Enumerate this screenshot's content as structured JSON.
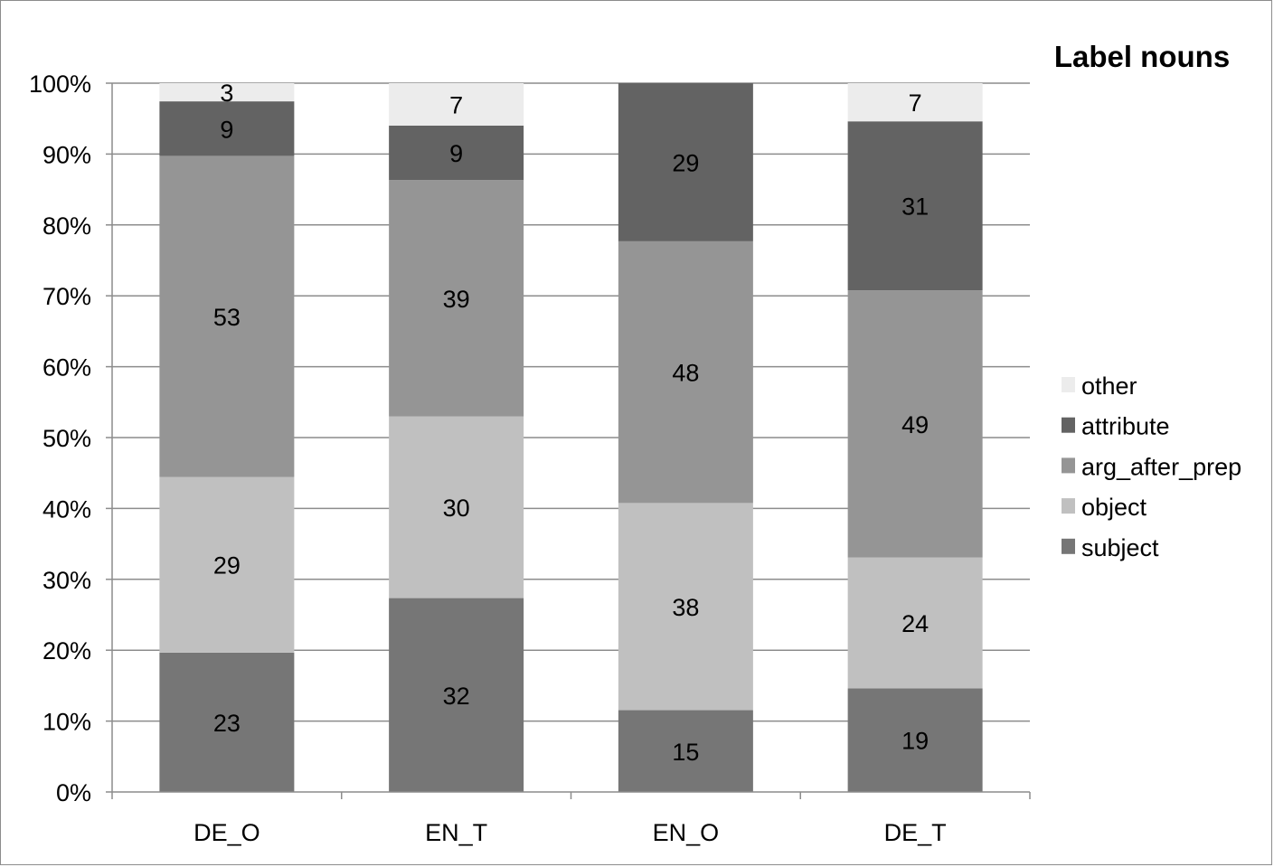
{
  "chart_data": {
    "type": "bar",
    "stacked": "percent",
    "title": "Label nouns",
    "xlabel": "",
    "ylabel": "",
    "ylim": [
      0,
      100
    ],
    "y_ticks": [
      "0%",
      "10%",
      "20%",
      "30%",
      "40%",
      "50%",
      "60%",
      "70%",
      "80%",
      "90%",
      "100%"
    ],
    "grid": true,
    "legend_position": "right",
    "categories": [
      "DE_O",
      "EN_T",
      "EN_O",
      "DE_T"
    ],
    "series": [
      {
        "name": "subject",
        "values": [
          23,
          32,
          15,
          19
        ],
        "color": "#767676"
      },
      {
        "name": "object",
        "values": [
          29,
          30,
          38,
          24
        ],
        "color": "#c0c0c0"
      },
      {
        "name": "arg_after_prep",
        "values": [
          53,
          39,
          48,
          49
        ],
        "color": "#959595"
      },
      {
        "name": "attribute",
        "values": [
          9,
          9,
          29,
          31
        ],
        "color": "#636363"
      },
      {
        "name": "other",
        "values": [
          3,
          7,
          0,
          7
        ],
        "color": "#ececec"
      }
    ],
    "legend_order": [
      "other",
      "attribute",
      "arg_after_prep",
      "object",
      "subject"
    ]
  }
}
